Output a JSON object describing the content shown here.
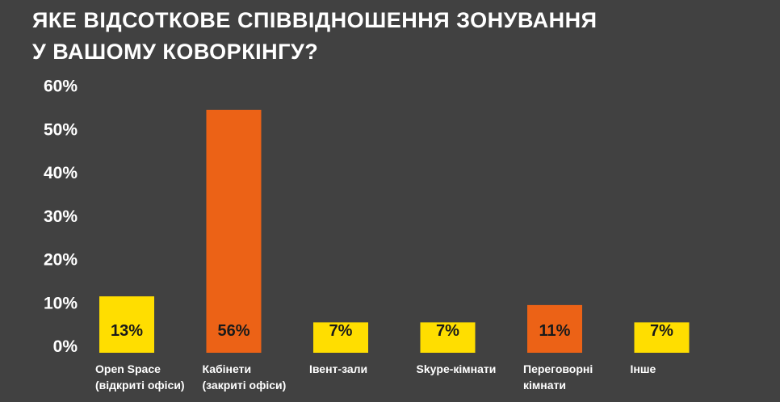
{
  "chart_data": {
    "type": "bar",
    "title": [
      "ЯКЕ ВІДСОТКОВЕ СПІВВІДНОШЕННЯ ЗОНУВАННЯ",
      "У ВАШОМУ КОВОРКІНГУ?"
    ],
    "categories": [
      [
        "Open Space",
        "(відкриті офіси)"
      ],
      [
        "Кабінети",
        "(закриті офіси)"
      ],
      [
        "Івент-зали"
      ],
      [
        "Skype-кімнати"
      ],
      [
        "Переговорні",
        "кімнати"
      ],
      [
        "Інше"
      ]
    ],
    "values": [
      13,
      56,
      7,
      7,
      11,
      7
    ],
    "data_labels": [
      "13%",
      "56%",
      "7%",
      "7%",
      "11%",
      "7%"
    ],
    "bar_colors": [
      "#ffde00",
      "#ec6216",
      "#ffde00",
      "#ffde00",
      "#ec6216",
      "#ffde00"
    ],
    "ylim": [
      0,
      60
    ],
    "yticks": [
      "0%",
      "10%",
      "20%",
      "30%",
      "40%",
      "50%",
      "60%"
    ],
    "grid": false,
    "legend": "none",
    "xlabel": "",
    "ylabel": ""
  }
}
